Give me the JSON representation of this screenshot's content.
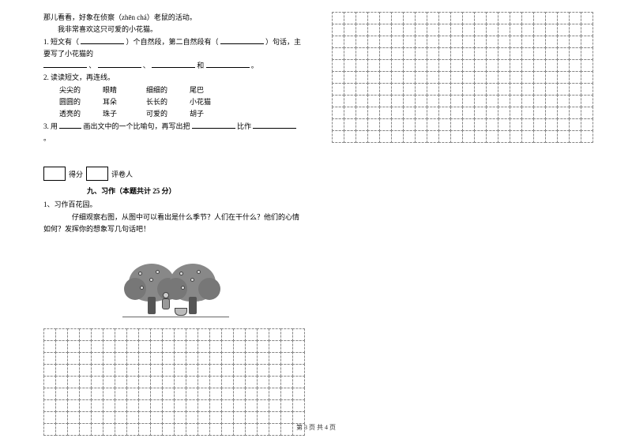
{
  "reading": {
    "line1": "那儿看看，好象在侦察（zhēn  chá）老鼠的活动。",
    "line2": "我非常喜欢这只可爱的小花猫。",
    "q1_a": "1. 短文有（",
    "q1_b": "）个自然段，第二自然段有（",
    "q1_c": "）句话，主要写了小花猫的",
    "q1_sep1": "、",
    "q1_sep2": "、",
    "q1_sep3": "和",
    "q1_end": "。",
    "q2": "2. 读读短文，再连线。",
    "match": {
      "r1": [
        "尖尖的",
        "眼睛",
        "细细的",
        "尾巴"
      ],
      "r2": [
        "圆圆的",
        "耳朵",
        "长长的",
        "小花猫"
      ],
      "r3": [
        "透亮的",
        "珠子",
        "可爱的",
        "胡子"
      ]
    },
    "q3_a": "3. 用",
    "q3_b": "画出文中的一个比喻句，再写出把",
    "q3_c": "比作",
    "q3_d": "。"
  },
  "section9": {
    "score_label1": "得分",
    "score_label2": "评卷人",
    "title": "九、习作（本题共计 25 分）",
    "q_label": "1、习作百花园。",
    "q_text": "仔细观察右图，从图中可以看出是什么季节？人们在干什么？他们的心情   如何？发挥你的想象写几句话吧！"
  },
  "grids": {
    "left_cols": 22,
    "left_rows": 9,
    "right_cols": 22,
    "right_rows": 11
  },
  "footer": "第 3 页 共 4 页",
  "colors": {
    "text": "#000000",
    "bg": "#ffffff",
    "grid_border": "#888888"
  }
}
